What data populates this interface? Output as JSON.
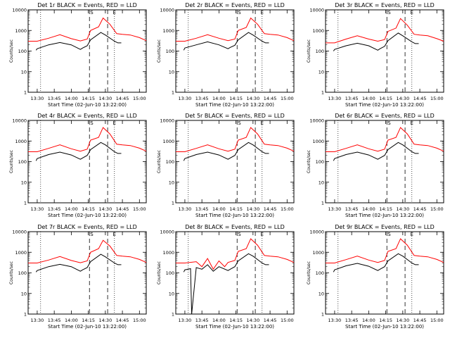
{
  "chart_data": [
    {
      "type": "line",
      "title": "Det 1r BLACK = Events, RED = LLD",
      "ylabel": "Counts/sec",
      "xlabel": "Start Time (02-Jun-10 13:22:00)",
      "x_ticks": [
        "13:30",
        "13:45",
        "14:00",
        "14:15",
        "14:30",
        "14:45",
        "15:00"
      ],
      "y_ticks": [
        "1",
        "10",
        "100",
        "1000",
        "10000"
      ],
      "yscale": "log",
      "ylim": [
        1,
        10000
      ],
      "markers": [
        "S",
        "E"
      ],
      "series": [
        {
          "color": "#ff0000",
          "x": [
            "13:22",
            "13:30",
            "13:40",
            "13:50",
            "14:00",
            "14:08",
            "14:14",
            "14:17",
            "14:24",
            "14:28",
            "14:34",
            "14:40",
            "14:45",
            "14:52",
            "15:00",
            "15:06"
          ],
          "y": [
            300,
            300,
            420,
            620,
            400,
            310,
            380,
            1000,
            1500,
            4000,
            2000,
            700,
            650,
            600,
            450,
            320
          ]
        },
        {
          "color": "#000000",
          "x": [
            "13:29",
            "13:30",
            "13:40",
            "13:50",
            "14:00",
            "14:08",
            "14:10",
            "14:14",
            "14:17",
            "14:26",
            "14:30",
            "14:38",
            "14:41",
            "14:44"
          ],
          "y": [
            110,
            130,
            200,
            260,
            200,
            120,
            140,
            180,
            350,
            800,
            600,
            300,
            250,
            250
          ]
        }
      ]
    },
    {
      "type": "line",
      "title": "Det 2r BLACK = Events, RED = LLD",
      "ylabel": "Counts/sec",
      "xlabel": "Start Time (02-Jun-10 13:22:00)",
      "x_ticks": [
        "13:30",
        "13:45",
        "14:00",
        "14:15",
        "14:30",
        "14:45",
        "15:00"
      ],
      "y_ticks": [
        "1",
        "10",
        "100",
        "1000",
        "10000"
      ],
      "yscale": "log",
      "ylim": [
        1,
        10000
      ],
      "markers": [
        "S",
        "E"
      ],
      "series": [
        {
          "color": "#ff0000",
          "x": [
            "13:22",
            "13:30",
            "13:40",
            "13:50",
            "14:00",
            "14:08",
            "14:14",
            "14:17",
            "14:24",
            "14:28",
            "14:34",
            "14:40",
            "14:45",
            "14:52",
            "15:00",
            "15:06"
          ],
          "y": [
            300,
            300,
            420,
            620,
            420,
            320,
            380,
            1000,
            1400,
            4000,
            2000,
            700,
            650,
            600,
            450,
            320
          ]
        },
        {
          "color": "#000000",
          "x": [
            "13:29",
            "13:30",
            "13:40",
            "13:50",
            "14:00",
            "14:08",
            "14:10",
            "14:14",
            "14:17",
            "14:26",
            "14:30",
            "14:38",
            "14:41",
            "14:44"
          ],
          "y": [
            110,
            140,
            200,
            280,
            200,
            130,
            150,
            190,
            350,
            800,
            600,
            300,
            250,
            250
          ]
        }
      ]
    },
    {
      "type": "line",
      "title": "Det 3r BLACK = Events, RED = LLD",
      "ylabel": "Counts/sec",
      "xlabel": "Start Time (02-Jun-10 13:22:00)",
      "x_ticks": [
        "13:30",
        "13:45",
        "14:00",
        "14:15",
        "14:30",
        "14:45",
        "15:00"
      ],
      "y_ticks": [
        "1",
        "10",
        "100",
        "1000",
        "10000"
      ],
      "yscale": "log",
      "ylim": [
        1,
        10000
      ],
      "markers": [
        "S",
        "E"
      ],
      "series": [
        {
          "color": "#ff0000",
          "x": [
            "13:22",
            "13:30",
            "13:40",
            "13:50",
            "14:00",
            "14:08",
            "14:14",
            "14:17",
            "14:24",
            "14:28",
            "14:34",
            "14:40",
            "14:45",
            "14:52",
            "15:00",
            "15:06"
          ],
          "y": [
            250,
            250,
            380,
            550,
            380,
            300,
            360,
            900,
            1300,
            3800,
            1800,
            650,
            600,
            550,
            400,
            300
          ]
        },
        {
          "color": "#000000",
          "x": [
            "13:29",
            "13:30",
            "13:40",
            "13:50",
            "14:00",
            "14:08",
            "14:10",
            "14:14",
            "14:17",
            "14:26",
            "14:30",
            "14:38",
            "14:41",
            "14:44"
          ],
          "y": [
            100,
            120,
            180,
            240,
            180,
            110,
            130,
            170,
            320,
            750,
            550,
            280,
            230,
            230
          ]
        }
      ]
    },
    {
      "type": "line",
      "title": "Det 4r BLACK = Events, RED = LLD",
      "ylabel": "Counts/sec",
      "xlabel": "Start Time (02-Jun-10 13:22:00)",
      "x_ticks": [
        "13:30",
        "13:45",
        "14:00",
        "14:15",
        "14:30",
        "14:45",
        "15:00"
      ],
      "y_ticks": [
        "1",
        "10",
        "100",
        "1000",
        "10000"
      ],
      "yscale": "log",
      "ylim": [
        1,
        10000
      ],
      "markers": [
        "S",
        "E"
      ],
      "series": [
        {
          "color": "#ff0000",
          "x": [
            "13:22",
            "13:30",
            "13:40",
            "13:50",
            "14:00",
            "14:08",
            "14:14",
            "14:17",
            "14:24",
            "14:28",
            "14:34",
            "14:40",
            "14:45",
            "14:52",
            "15:00",
            "15:06"
          ],
          "y": [
            300,
            300,
            440,
            650,
            420,
            320,
            400,
            1100,
            1500,
            4500,
            2200,
            700,
            650,
            600,
            450,
            320
          ]
        },
        {
          "color": "#000000",
          "x": [
            "13:29",
            "13:30",
            "13:40",
            "13:50",
            "14:00",
            "14:08",
            "14:10",
            "14:14",
            "14:17",
            "14:26",
            "14:30",
            "14:38",
            "14:41",
            "14:44"
          ],
          "y": [
            110,
            140,
            220,
            290,
            210,
            130,
            150,
            200,
            380,
            850,
            650,
            300,
            250,
            250
          ]
        }
      ]
    },
    {
      "type": "line",
      "title": "Det 5r BLACK = Events, RED = LLD",
      "ylabel": "Counts/sec",
      "xlabel": "Start Time (02-Jun-10 13:22:00)",
      "x_ticks": [
        "13:30",
        "13:45",
        "14:00",
        "14:15",
        "14:30",
        "14:45",
        "15:00"
      ],
      "y_ticks": [
        "1",
        "10",
        "100",
        "1000",
        "10000"
      ],
      "yscale": "log",
      "ylim": [
        1,
        10000
      ],
      "markers": [
        "S",
        "E"
      ],
      "series": [
        {
          "color": "#ff0000",
          "x": [
            "13:22",
            "13:30",
            "13:40",
            "13:50",
            "14:00",
            "14:08",
            "14:14",
            "14:17",
            "14:24",
            "14:28",
            "14:34",
            "14:40",
            "14:45",
            "14:52",
            "15:00",
            "15:06"
          ],
          "y": [
            300,
            300,
            440,
            650,
            420,
            320,
            400,
            1100,
            1500,
            4500,
            2200,
            700,
            650,
            600,
            450,
            320
          ]
        },
        {
          "color": "#000000",
          "x": [
            "13:29",
            "13:30",
            "13:40",
            "13:50",
            "14:00",
            "14:08",
            "14:10",
            "14:14",
            "14:17",
            "14:26",
            "14:30",
            "14:38",
            "14:41",
            "14:44"
          ],
          "y": [
            110,
            140,
            220,
            290,
            210,
            130,
            150,
            200,
            380,
            850,
            650,
            300,
            250,
            250
          ]
        }
      ]
    },
    {
      "type": "line",
      "title": "Det 6r BLACK = Events, RED = LLD",
      "ylabel": "Counts/sec",
      "xlabel": "Start Time (02-Jun-10 13:22:00)",
      "x_ticks": [
        "13:30",
        "13:45",
        "14:00",
        "14:15",
        "14:30",
        "14:45",
        "15:00"
      ],
      "y_ticks": [
        "1",
        "10",
        "100",
        "1000",
        "10000"
      ],
      "yscale": "log",
      "ylim": [
        1,
        10000
      ],
      "markers": [
        "S",
        "E"
      ],
      "series": [
        {
          "color": "#ff0000",
          "x": [
            "13:22",
            "13:30",
            "13:40",
            "13:50",
            "14:00",
            "14:08",
            "14:14",
            "14:17",
            "14:24",
            "14:28",
            "14:34",
            "14:40",
            "14:45",
            "14:52",
            "15:00",
            "15:06"
          ],
          "y": [
            300,
            300,
            440,
            650,
            420,
            320,
            400,
            1100,
            1500,
            4500,
            2200,
            700,
            650,
            600,
            450,
            320
          ]
        },
        {
          "color": "#000000",
          "x": [
            "13:29",
            "13:30",
            "13:40",
            "13:50",
            "14:00",
            "14:08",
            "14:10",
            "14:14",
            "14:17",
            "14:26",
            "14:30",
            "14:38",
            "14:41",
            "14:44"
          ],
          "y": [
            110,
            140,
            220,
            290,
            210,
            130,
            150,
            200,
            380,
            850,
            650,
            300,
            250,
            250
          ]
        }
      ]
    },
    {
      "type": "line",
      "title": "Det 7r BLACK = Events, RED = LLD",
      "ylabel": "Counts/sec",
      "xlabel": "Start Time (02-Jun-10 13:22:00)",
      "x_ticks": [
        "13:30",
        "13:45",
        "14:00",
        "14:15",
        "14:30",
        "14:45",
        "15:00"
      ],
      "y_ticks": [
        "1",
        "10",
        "100",
        "1000",
        "10000"
      ],
      "yscale": "log",
      "ylim": [
        1,
        10000
      ],
      "markers": [
        "S",
        "E"
      ],
      "series": [
        {
          "color": "#ff0000",
          "x": [
            "13:22",
            "13:30",
            "13:40",
            "13:50",
            "14:00",
            "14:08",
            "14:14",
            "14:17",
            "14:24",
            "14:28",
            "14:34",
            "14:40",
            "14:45",
            "14:52",
            "15:00",
            "15:06"
          ],
          "y": [
            300,
            300,
            420,
            620,
            400,
            310,
            380,
            1000,
            1500,
            3800,
            2000,
            700,
            650,
            600,
            450,
            320
          ]
        },
        {
          "color": "#000000",
          "x": [
            "13:29",
            "13:30",
            "13:40",
            "13:50",
            "14:00",
            "14:08",
            "14:10",
            "14:14",
            "14:17",
            "14:26",
            "14:30",
            "14:38",
            "14:41",
            "14:44"
          ],
          "y": [
            110,
            130,
            200,
            260,
            200,
            120,
            140,
            180,
            350,
            800,
            600,
            300,
            250,
            250
          ]
        }
      ]
    },
    {
      "type": "line",
      "title": "Det 8r BLACK = Events, RED = LLD",
      "ylabel": "Counts/sec",
      "xlabel": "Start Time (02-Jun-10 13:22:00)",
      "x_ticks": [
        "13:30",
        "13:45",
        "14:00",
        "14:15",
        "14:30",
        "14:45",
        "15:00"
      ],
      "y_ticks": [
        "1",
        "10",
        "100",
        "1000",
        "10000"
      ],
      "yscale": "log",
      "ylim": [
        1,
        10000
      ],
      "markers": [
        "S",
        "E"
      ],
      "series": [
        {
          "color": "#ff0000",
          "x": [
            "13:22",
            "13:30",
            "13:40",
            "13:45",
            "13:50",
            "13:55",
            "14:00",
            "14:05",
            "14:08",
            "14:14",
            "14:17",
            "14:24",
            "14:28",
            "14:34",
            "14:40",
            "14:45",
            "14:52",
            "15:00",
            "15:06"
          ],
          "y": [
            300,
            300,
            350,
            200,
            500,
            150,
            380,
            200,
            320,
            400,
            1100,
            1500,
            4500,
            2200,
            700,
            650,
            600,
            450,
            320
          ]
        },
        {
          "color": "#000000",
          "x": [
            "13:29",
            "13:30",
            "13:35",
            "13:36",
            "13:40",
            "13:45",
            "13:50",
            "13:55",
            "14:00",
            "14:08",
            "14:10",
            "14:14",
            "14:17",
            "14:26",
            "14:30",
            "14:38",
            "14:41",
            "14:44"
          ],
          "y": [
            110,
            140,
            160,
            1,
            180,
            150,
            250,
            120,
            200,
            130,
            150,
            200,
            380,
            850,
            650,
            300,
            250,
            250
          ]
        }
      ]
    },
    {
      "type": "line",
      "title": "Det 9r BLACK = Events, RED = LLD",
      "ylabel": "Counts/sec",
      "xlabel": "Start Time (02-Jun-10 13:22:00)",
      "x_ticks": [
        "13:30",
        "13:45",
        "14:00",
        "14:15",
        "14:30",
        "14:45",
        "15:00"
      ],
      "y_ticks": [
        "1",
        "10",
        "100",
        "1000",
        "10000"
      ],
      "yscale": "log",
      "ylim": [
        1,
        10000
      ],
      "markers": [
        "S",
        "E"
      ],
      "series": [
        {
          "color": "#ff0000",
          "x": [
            "13:22",
            "13:30",
            "13:40",
            "13:50",
            "14:00",
            "14:08",
            "14:14",
            "14:17",
            "14:24",
            "14:28",
            "14:34",
            "14:40",
            "14:45",
            "14:52",
            "15:00",
            "15:06"
          ],
          "y": [
            300,
            300,
            440,
            650,
            420,
            320,
            400,
            1100,
            1500,
            4500,
            2200,
            700,
            650,
            600,
            450,
            320
          ]
        },
        {
          "color": "#000000",
          "x": [
            "13:29",
            "13:30",
            "13:40",
            "13:50",
            "14:00",
            "14:08",
            "14:10",
            "14:14",
            "14:17",
            "14:26",
            "14:30",
            "14:38",
            "14:41",
            "14:44"
          ],
          "y": [
            110,
            140,
            220,
            290,
            210,
            130,
            150,
            200,
            380,
            850,
            650,
            300,
            250,
            250
          ]
        }
      ]
    }
  ]
}
